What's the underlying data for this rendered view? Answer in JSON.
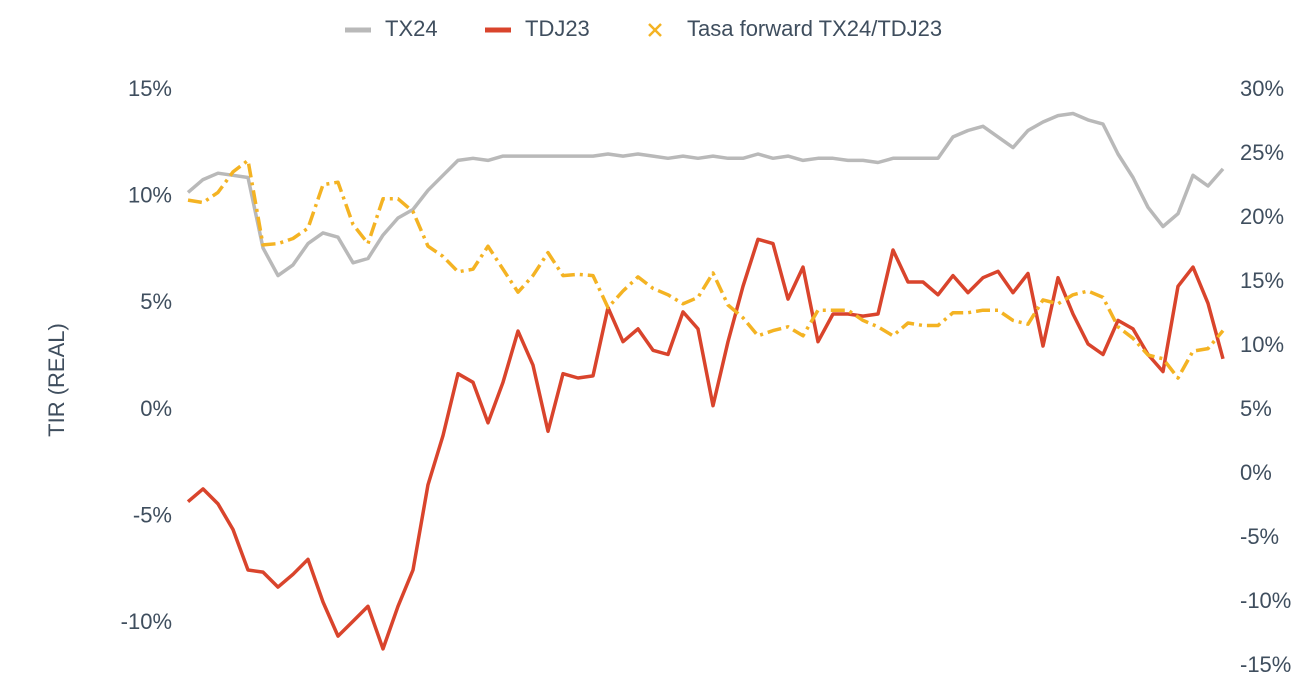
{
  "chart_data": {
    "type": "line",
    "y_label": "TIR (REAL)",
    "ylim": [
      -12,
      15
    ],
    "yticks": [
      {
        "value": -10,
        "label": "-10%"
      },
      {
        "value": -5,
        "label": "-5%"
      },
      {
        "value": 0,
        "label": "0%"
      },
      {
        "value": 5,
        "label": "5%"
      },
      {
        "value": 10,
        "label": "10%"
      },
      {
        "value": 15,
        "label": "15%"
      }
    ],
    "y2lim": [
      -15,
      30
    ],
    "y2ticks": [
      {
        "value": -15,
        "label": "-15%"
      },
      {
        "value": -10,
        "label": "-10%"
      },
      {
        "value": -5,
        "label": "-5%"
      },
      {
        "value": 0,
        "label": "0%"
      },
      {
        "value": 5,
        "label": "5%"
      },
      {
        "value": 10,
        "label": "10%"
      },
      {
        "value": 15,
        "label": "15%"
      },
      {
        "value": 20,
        "label": "20%"
      },
      {
        "value": 25,
        "label": "25%"
      },
      {
        "value": 30,
        "label": "30%"
      }
    ],
    "grid": false,
    "legend": "top",
    "series": [
      {
        "name": "TX24",
        "color": "#b9b9b9",
        "values": [
          10.2,
          10.8,
          11.1,
          11.0,
          10.9,
          7.6,
          6.3,
          6.8,
          7.8,
          8.3,
          8.1,
          6.9,
          7.1,
          8.2,
          9.0,
          9.4,
          10.3,
          11.0,
          11.7,
          11.8,
          11.7,
          11.9,
          11.9,
          11.9,
          11.9,
          11.9,
          11.9,
          11.9,
          12.0,
          11.9,
          12.0,
          11.9,
          11.8,
          11.9,
          11.8,
          11.9,
          11.8,
          11.8,
          12.0,
          11.8,
          11.9,
          11.7,
          11.8,
          11.8,
          11.7,
          11.7,
          11.6,
          11.8,
          11.8,
          11.8,
          11.8,
          12.8,
          13.1,
          13.3,
          12.8,
          12.3,
          13.1,
          13.5,
          13.8,
          13.9,
          13.6,
          13.4,
          12.0,
          10.9,
          9.5,
          8.6,
          9.2,
          11.0,
          10.5,
          11.3
        ]
      },
      {
        "name": "TDJ23",
        "color": "#d9442c",
        "values": [
          -4.3,
          -3.7,
          -4.4,
          -5.6,
          -7.5,
          -7.6,
          -8.3,
          -7.7,
          -7.0,
          -9.0,
          -10.6,
          -9.9,
          -9.2,
          -11.2,
          -9.2,
          -7.5,
          -3.5,
          -1.2,
          1.7,
          1.3,
          -0.6,
          1.3,
          3.7,
          2.1,
          -1.0,
          1.7,
          1.5,
          1.6,
          4.8,
          3.2,
          3.8,
          2.8,
          2.6,
          4.6,
          3.8,
          0.2,
          3.2,
          5.8,
          8.0,
          7.8,
          5.2,
          6.7,
          3.2,
          4.5,
          4.5,
          4.4,
          4.5,
          7.5,
          6.0,
          6.0,
          5.4,
          6.3,
          5.5,
          6.2,
          6.5,
          5.5,
          6.4,
          3.0,
          6.2,
          4.5,
          3.1,
          2.6,
          4.2,
          3.8,
          2.6,
          1.8,
          5.8,
          6.7,
          5.0,
          2.4
        ]
      },
      {
        "name": "Tasa forward TX24/TDJ23",
        "color": "#f4b323",
        "axis": "y2",
        "values": [
          21.4,
          21.2,
          22.0,
          23.6,
          24.5,
          17.9,
          18.0,
          18.4,
          19.2,
          22.6,
          22.8,
          19.5,
          18.0,
          21.5,
          21.5,
          20.5,
          17.8,
          17.0,
          15.8,
          16.0,
          17.8,
          16.0,
          14.2,
          15.5,
          17.3,
          15.5,
          15.6,
          15.5,
          13.0,
          14.3,
          15.4,
          14.5,
          14.0,
          13.3,
          13.8,
          15.7,
          13.2,
          12.2,
          10.8,
          11.2,
          11.5,
          10.8,
          12.8,
          12.8,
          12.8,
          12.0,
          11.5,
          10.8,
          11.8,
          11.6,
          11.6,
          12.6,
          12.6,
          12.8,
          12.8,
          12.0,
          11.7,
          13.6,
          13.3,
          14.0,
          14.3,
          13.8,
          11.5,
          10.6,
          9.3,
          9.0,
          7.5,
          9.6,
          9.8,
          11.2
        ]
      }
    ]
  }
}
